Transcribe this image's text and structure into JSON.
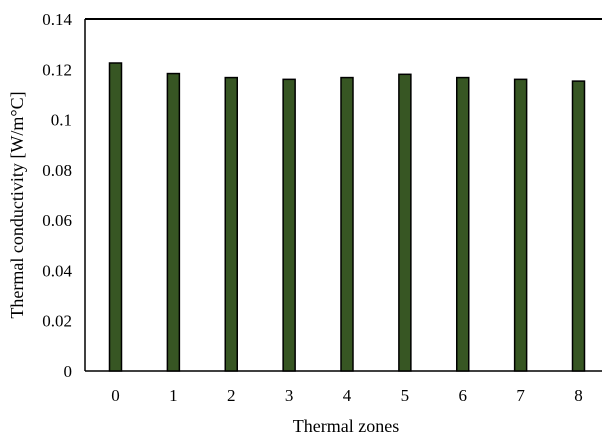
{
  "chart_data": {
    "type": "bar",
    "title": "",
    "xlabel": "Thermal zones",
    "ylabel": "Thermal conductivity [W/m°C]",
    "categories": [
      "0",
      "1",
      "2",
      "3",
      "4",
      "5",
      "6",
      "7",
      "8"
    ],
    "values": [
      0.1225,
      0.1183,
      0.1167,
      0.116,
      0.1167,
      0.118,
      0.1167,
      0.116,
      0.1153
    ],
    "ylim": [
      0,
      0.14
    ],
    "yticks": [
      "0",
      "0.02",
      "0.04",
      "0.06",
      "0.08",
      "0.1",
      "0.12",
      "0.14"
    ],
    "ytick_values": [
      0,
      0.02,
      0.04,
      0.06,
      0.08,
      0.1,
      0.12,
      0.14
    ],
    "grid": false,
    "legend": "none",
    "bar_color": "#375623"
  }
}
